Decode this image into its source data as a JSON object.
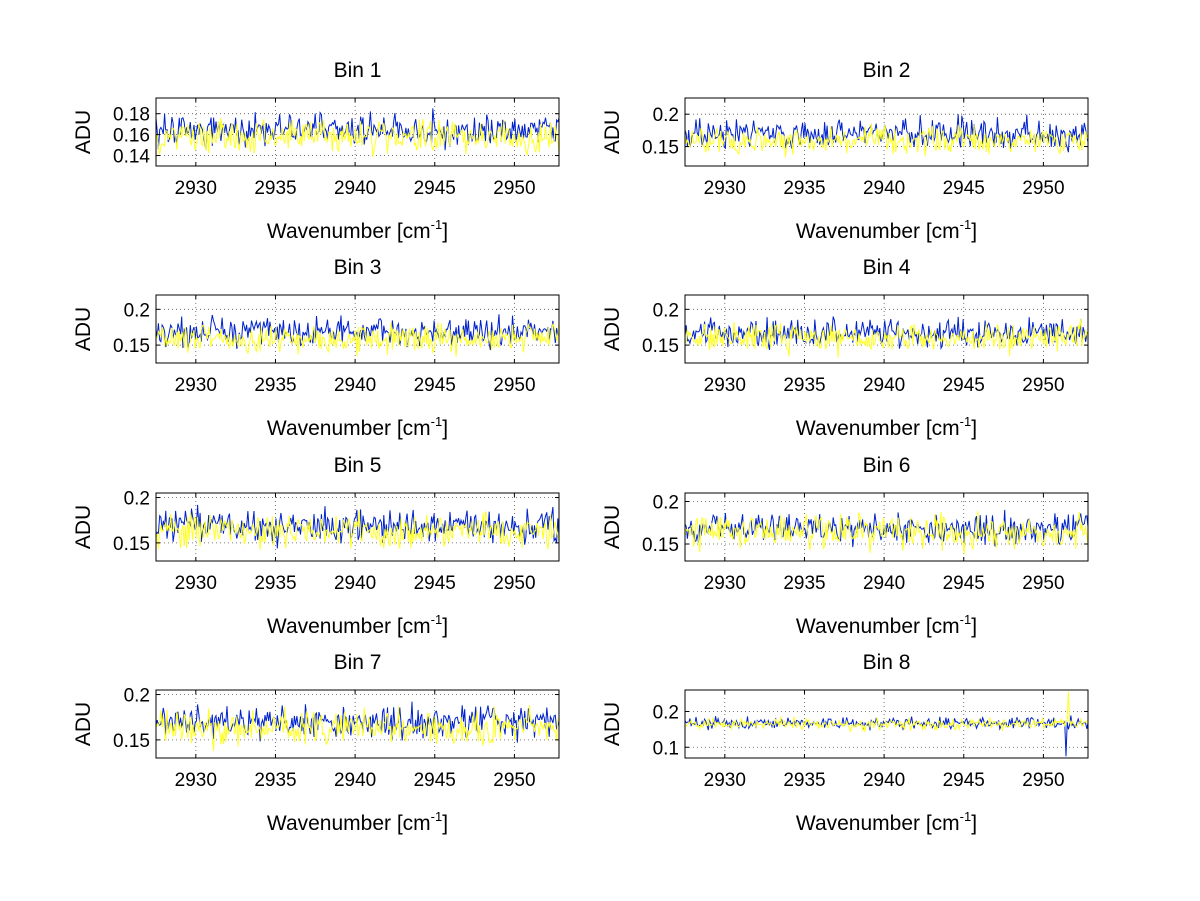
{
  "figure": {
    "series_colors": [
      "#0022cc",
      "#ffff22"
    ],
    "grid_color": "#555555"
  },
  "chart_data": [
    {
      "type": "line",
      "title": "Bin 1",
      "xlabel": "Wavenumber [cm",
      "xlabel_sup": "-1",
      "xlabel_close": "]",
      "ylabel": "ADU",
      "xlim": [
        2927.5,
        2952.8
      ],
      "ylim": [
        0.13,
        0.195
      ],
      "grid": true,
      "xticks": [
        2930,
        2935,
        2940,
        2945,
        2950
      ],
      "yticks": [
        0.14,
        0.16,
        0.18
      ],
      "ytick_labels": [
        "0.14",
        "0.16",
        "0.18"
      ],
      "series": [
        {
          "name": "series-blue",
          "color": "#0022cc",
          "mean": 0.165,
          "noise": 0.0095,
          "seed": 11,
          "n": 330
        },
        {
          "name": "series-yellow",
          "color": "#ffff22",
          "mean": 0.158,
          "noise": 0.0095,
          "seed": 12,
          "n": 330
        }
      ]
    },
    {
      "type": "line",
      "title": "Bin 2",
      "xlabel": "Wavenumber [cm",
      "xlabel_sup": "-1",
      "xlabel_close": "]",
      "ylabel": "ADU",
      "xlim": [
        2927.5,
        2952.8
      ],
      "ylim": [
        0.12,
        0.225
      ],
      "grid": true,
      "xticks": [
        2930,
        2935,
        2940,
        2945,
        2950
      ],
      "yticks": [
        0.15,
        0.2
      ],
      "ytick_labels": [
        "0.15",
        "0.2"
      ],
      "series": [
        {
          "name": "series-blue",
          "color": "#0022cc",
          "mean": 0.17,
          "noise": 0.014,
          "seed": 21,
          "n": 330
        },
        {
          "name": "series-yellow",
          "color": "#ffff22",
          "mean": 0.16,
          "noise": 0.012,
          "seed": 22,
          "n": 330
        }
      ]
    },
    {
      "type": "line",
      "title": "Bin 3",
      "xlabel": "Wavenumber [cm",
      "xlabel_sup": "-1",
      "xlabel_close": "]",
      "ylabel": "ADU",
      "xlim": [
        2927.5,
        2952.8
      ],
      "ylim": [
        0.125,
        0.22
      ],
      "grid": true,
      "xticks": [
        2930,
        2935,
        2940,
        2945,
        2950
      ],
      "yticks": [
        0.15,
        0.2
      ],
      "ytick_labels": [
        "0.15",
        "0.2"
      ],
      "series": [
        {
          "name": "series-blue",
          "color": "#0022cc",
          "mean": 0.168,
          "noise": 0.012,
          "seed": 31,
          "n": 330
        },
        {
          "name": "series-yellow",
          "color": "#ffff22",
          "mean": 0.16,
          "noise": 0.012,
          "seed": 32,
          "n": 330
        }
      ]
    },
    {
      "type": "line",
      "title": "Bin 4",
      "xlabel": "Wavenumber [cm",
      "xlabel_sup": "-1",
      "xlabel_close": "]",
      "ylabel": "ADU",
      "xlim": [
        2927.5,
        2952.8
      ],
      "ylim": [
        0.125,
        0.22
      ],
      "grid": true,
      "xticks": [
        2930,
        2935,
        2940,
        2945,
        2950
      ],
      "yticks": [
        0.15,
        0.2
      ],
      "ytick_labels": [
        "0.15",
        "0.2"
      ],
      "series": [
        {
          "name": "series-blue",
          "color": "#0022cc",
          "mean": 0.167,
          "noise": 0.012,
          "seed": 41,
          "n": 330
        },
        {
          "name": "series-yellow",
          "color": "#ffff22",
          "mean": 0.16,
          "noise": 0.012,
          "seed": 42,
          "n": 330
        }
      ]
    },
    {
      "type": "line",
      "title": "Bin 5",
      "xlabel": "Wavenumber [cm",
      "xlabel_sup": "-1",
      "xlabel_close": "]",
      "ylabel": "ADU",
      "xlim": [
        2927.5,
        2952.8
      ],
      "ylim": [
        0.13,
        0.205
      ],
      "grid": true,
      "xticks": [
        2930,
        2935,
        2940,
        2945,
        2950
      ],
      "yticks": [
        0.15,
        0.2
      ],
      "ytick_labels": [
        "0.15",
        "0.2"
      ],
      "series": [
        {
          "name": "series-blue",
          "color": "#0022cc",
          "mean": 0.168,
          "noise": 0.011,
          "seed": 51,
          "n": 330
        },
        {
          "name": "series-yellow",
          "color": "#ffff22",
          "mean": 0.163,
          "noise": 0.012,
          "seed": 52,
          "n": 330
        }
      ]
    },
    {
      "type": "line",
      "title": "Bin 6",
      "xlabel": "Wavenumber [cm",
      "xlabel_sup": "-1",
      "xlabel_close": "]",
      "ylabel": "ADU",
      "xlim": [
        2927.5,
        2952.8
      ],
      "ylim": [
        0.13,
        0.21
      ],
      "grid": true,
      "xticks": [
        2930,
        2935,
        2940,
        2945,
        2950
      ],
      "yticks": [
        0.15,
        0.2
      ],
      "ytick_labels": [
        "0.15",
        "0.2"
      ],
      "series": [
        {
          "name": "series-blue",
          "color": "#0022cc",
          "mean": 0.168,
          "noise": 0.011,
          "seed": 61,
          "n": 330
        },
        {
          "name": "series-yellow",
          "color": "#ffff22",
          "mean": 0.165,
          "noise": 0.012,
          "seed": 62,
          "n": 330
        }
      ]
    },
    {
      "type": "line",
      "title": "Bin 7",
      "xlabel": "Wavenumber [cm",
      "xlabel_sup": "-1",
      "xlabel_close": "]",
      "ylabel": "ADU",
      "xlim": [
        2927.5,
        2952.8
      ],
      "ylim": [
        0.13,
        0.205
      ],
      "grid": true,
      "xticks": [
        2930,
        2935,
        2940,
        2945,
        2950
      ],
      "yticks": [
        0.15,
        0.2
      ],
      "ytick_labels": [
        "0.15",
        "0.2"
      ],
      "series": [
        {
          "name": "series-blue",
          "color": "#0022cc",
          "mean": 0.17,
          "noise": 0.011,
          "seed": 71,
          "n": 330
        },
        {
          "name": "series-yellow",
          "color": "#ffff22",
          "mean": 0.163,
          "noise": 0.012,
          "seed": 72,
          "n": 330
        }
      ]
    },
    {
      "type": "line",
      "title": "Bin 8",
      "xlabel": "Wavenumber [cm",
      "xlabel_sup": "-1",
      "xlabel_close": "]",
      "ylabel": "ADU",
      "xlim": [
        2927.5,
        2952.8
      ],
      "ylim": [
        0.07,
        0.26
      ],
      "grid": true,
      "xticks": [
        2930,
        2935,
        2940,
        2945,
        2950
      ],
      "yticks": [
        0.1,
        0.2
      ],
      "ytick_labels": [
        "0.1",
        "0.2"
      ],
      "series": [
        {
          "name": "series-blue",
          "color": "#0022cc",
          "mean": 0.168,
          "noise": 0.01,
          "seed": 81,
          "n": 330,
          "spike": {
            "x": 2951.4,
            "y": 0.075
          }
        },
        {
          "name": "series-yellow",
          "color": "#ffff22",
          "mean": 0.165,
          "noise": 0.01,
          "seed": 82,
          "n": 330,
          "spike": {
            "x": 2951.6,
            "y": 0.255
          }
        }
      ]
    }
  ]
}
